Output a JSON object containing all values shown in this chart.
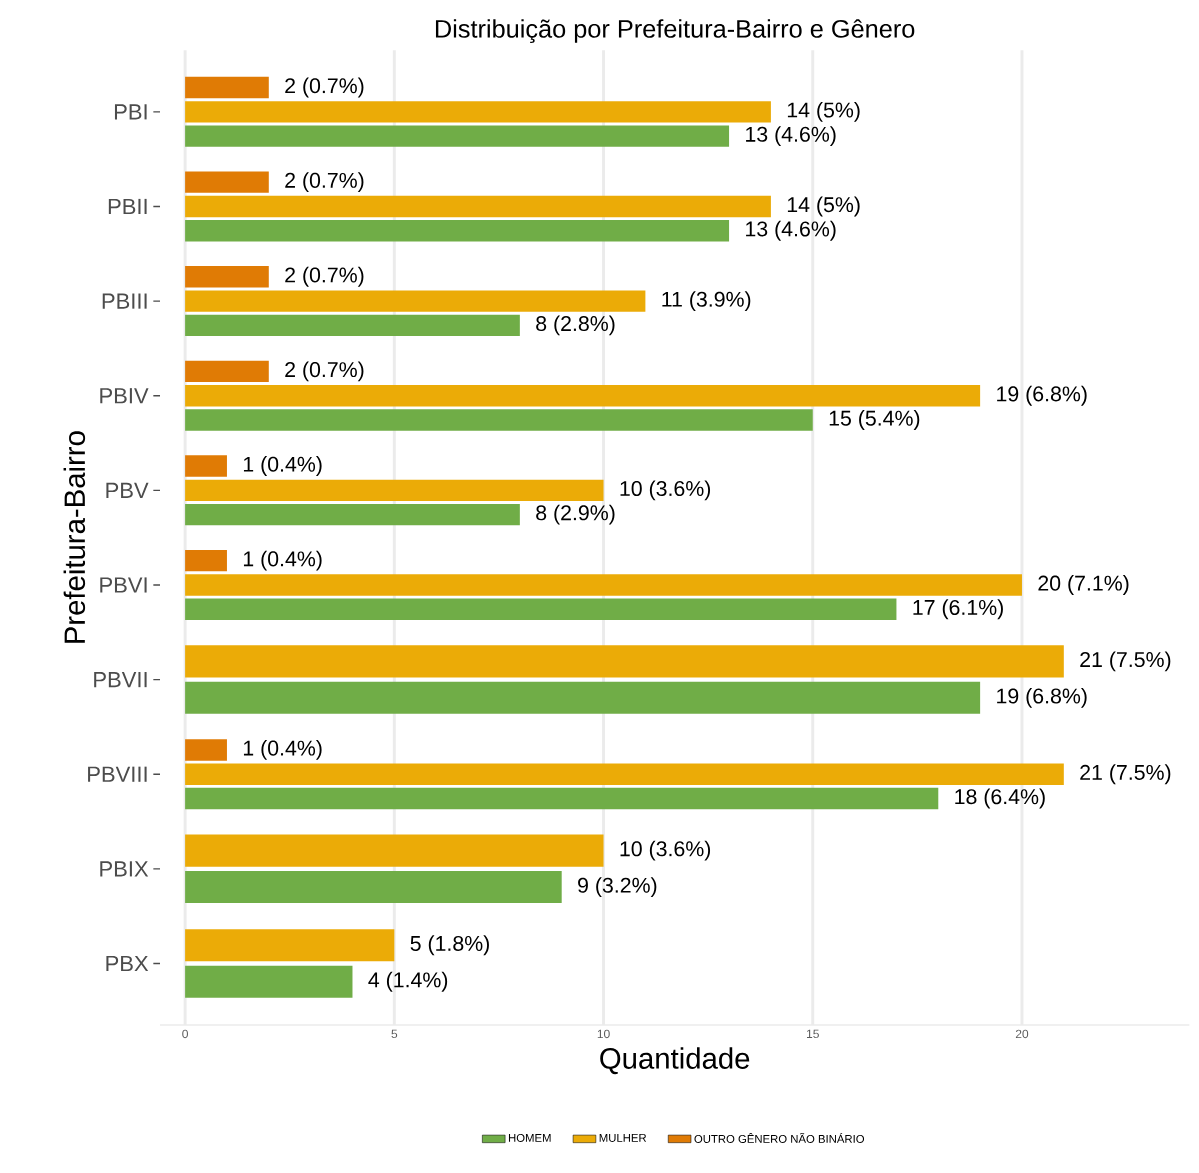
{
  "chart_data": {
    "type": "bar",
    "orientation": "horizontal",
    "title": "Distribuição por Prefeitura-Bairro e Gênero",
    "xlabel": "Quantidade",
    "ylabel": "Prefeitura-Bairro",
    "categories": [
      "PBI",
      "PBII",
      "PBIII",
      "PBIV",
      "PBV",
      "PBVI",
      "PBVII",
      "PBVIII",
      "PBIX",
      "PBX"
    ],
    "series": [
      {
        "name": "HOMEM",
        "color": "#70ad47",
        "values": [
          13,
          13,
          8,
          15,
          8,
          17,
          19,
          18,
          9,
          4
        ],
        "value_labels": [
          "13 (4.6%)",
          "13 (4.6%)",
          "8 (2.8%)",
          "15 (5.4%)",
          "8 (2.9%)",
          "17 (6.1%)",
          "19 (6.8%)",
          "18 (6.4%)",
          "9 (3.2%)",
          "4 (1.4%)"
        ]
      },
      {
        "name": "MULHER",
        "color": "#ebab07",
        "values": [
          14,
          14,
          11,
          19,
          10,
          20,
          21,
          21,
          10,
          5
        ],
        "value_labels": [
          "14 (5%)",
          "14 (5%)",
          "11 (3.9%)",
          "19 (6.8%)",
          "10 (3.6%)",
          "20 (7.1%)",
          "21 (7.5%)",
          "21 (7.5%)",
          "10 (3.6%)",
          "5 (1.8%)"
        ]
      },
      {
        "name": "OUTRO GÊNERO NÃO BINÁRIO",
        "color": "#e07b05",
        "values": [
          2,
          2,
          2,
          2,
          1,
          1,
          null,
          1,
          null,
          null
        ],
        "value_labels": [
          "2 (0.7%)",
          "2 (0.7%)",
          "2 (0.7%)",
          "2 (0.7%)",
          "1 (0.4%)",
          "1 (0.4%)",
          null,
          "1 (0.4%)",
          null,
          null
        ]
      }
    ],
    "xlim": [
      -0.6,
      24
    ],
    "xticks": [
      0,
      5,
      10,
      15,
      20
    ],
    "grid": "x",
    "legend": "bottom"
  }
}
